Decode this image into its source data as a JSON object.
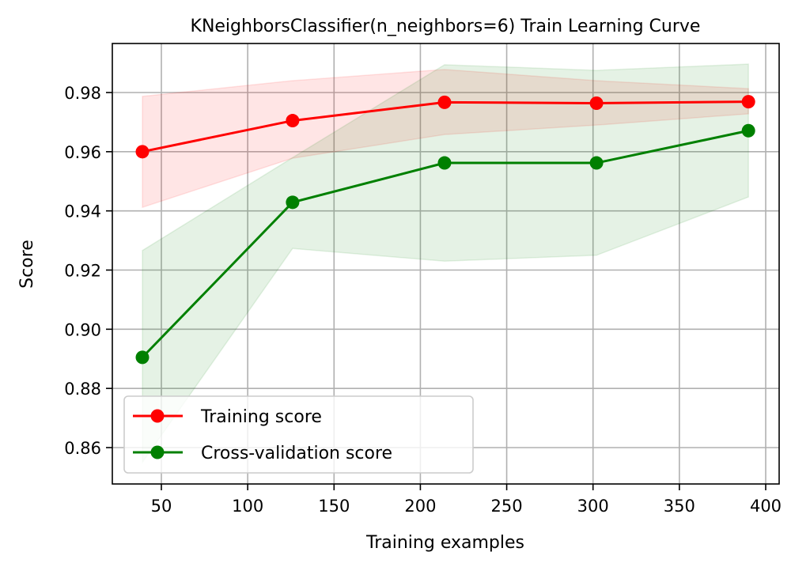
{
  "chart_data": {
    "type": "line",
    "title": "KNeighborsClassifier(n_neighbors=6) Train Learning Curve",
    "xlabel": "Training examples",
    "ylabel": "Score",
    "xlim": [
      22,
      408
    ],
    "ylim": [
      0.8466,
      0.9955
    ],
    "xticks": [
      50,
      100,
      150,
      200,
      250,
      300,
      350,
      400
    ],
    "yticks": [
      0.86,
      0.88,
      0.9,
      0.92,
      0.94,
      0.96,
      0.98
    ],
    "ytick_labels": [
      "0.86",
      "0.88",
      "0.90",
      "0.92",
      "0.94",
      "0.96",
      "0.98"
    ],
    "grid": true,
    "legend_position": "lower left",
    "x": [
      39,
      126,
      214,
      302,
      390
    ],
    "series": [
      {
        "name": "Training score",
        "color": "#ff0000",
        "values": [
          0.96,
          0.9705,
          0.9767,
          0.9764,
          0.9769
        ],
        "band_upper": [
          0.9787,
          0.984,
          0.9878,
          0.984,
          0.9813
        ],
        "band_lower": [
          0.9412,
          0.9578,
          0.9658,
          0.969,
          0.9728
        ],
        "band_color": "#ff0000",
        "band_alpha": 0.1
      },
      {
        "name": "Cross-validation score",
        "color": "#008000",
        "values": [
          0.8905,
          0.9429,
          0.9562,
          0.9562,
          0.9671
        ],
        "band_upper": [
          0.9266,
          0.958,
          0.9894,
          0.9875,
          0.9896
        ],
        "band_lower": [
          0.855,
          0.9273,
          0.923,
          0.925,
          0.9447
        ],
        "band_color": "#008000",
        "band_alpha": 0.1
      }
    ]
  }
}
